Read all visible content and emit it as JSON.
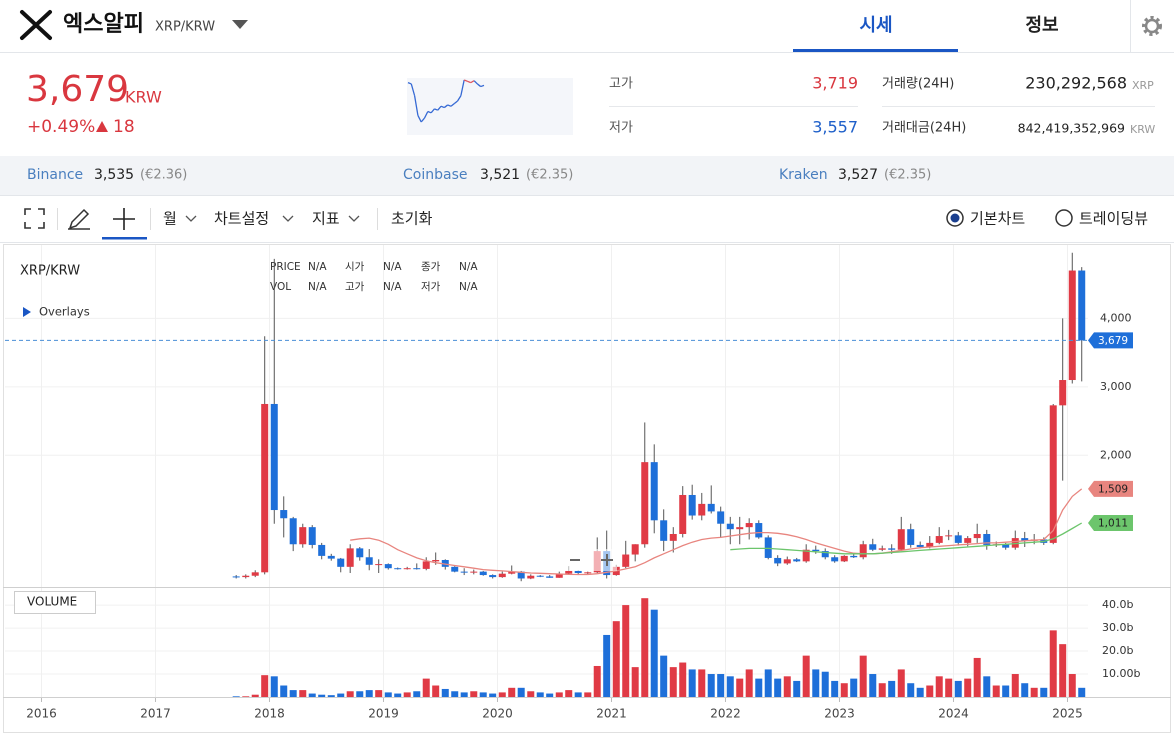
{
  "header": {
    "name": "엑스알피",
    "symbol": "XRP/KRW",
    "tabs": [
      "시세",
      "정보"
    ]
  },
  "price": {
    "value": "3,679",
    "unit": "KRW",
    "change_pct": "+0.49%",
    "change": "18"
  },
  "stats": [
    {
      "label": "고가",
      "value": "3,719"
    },
    {
      "label": "저가",
      "value": "3,557"
    },
    {
      "label": "거래량(24H)",
      "value": "230,292,568",
      "unit": "XRP"
    },
    {
      "label": "거래대금(24H)",
      "value": "842,419,352,969",
      "unit": "KRW"
    }
  ],
  "sparkline": {
    "values": [
      3700,
      3690,
      3600,
      3450,
      3400,
      3430,
      3480,
      3470,
      3500,
      3490,
      3520,
      3510,
      3530,
      3520,
      3540,
      3560,
      3600,
      3720,
      3710,
      3700,
      3715,
      3690,
      3670,
      3679
    ],
    "up_color": "#e0525a",
    "down_color": "#3569d4"
  },
  "exchanges": [
    {
      "name": "Binance",
      "price": "3,535",
      "eur": "(€2.36)"
    },
    {
      "name": "Coinbase",
      "price": "3,521",
      "eur": "(€2.35)"
    },
    {
      "name": "Kraken",
      "price": "3,527",
      "eur": "(€2.35)"
    }
  ],
  "toolbar": {
    "items": [
      "월",
      "차트설정",
      "지표",
      "초기화"
    ],
    "views": [
      "기본차트",
      "트레이딩뷰"
    ],
    "selected_view": 0
  },
  "chart_data": {
    "type": "candlestick",
    "title": "XRP/KRW",
    "overlays_label": "Overlays",
    "info_labels": [
      [
        "PRICE",
        "N/A",
        "시가",
        "N/A",
        "종가",
        "N/A"
      ],
      [
        "VOL",
        "N/A",
        "고가",
        "N/A",
        "저가",
        "N/A"
      ]
    ],
    "x": [
      2017.708,
      2017.792,
      2017.875,
      2017.958,
      2018.042,
      2018.125,
      2018.208,
      2018.292,
      2018.375,
      2018.458,
      2018.542,
      2018.625,
      2018.708,
      2018.792,
      2018.875,
      2018.958,
      2019.042,
      2019.125,
      2019.208,
      2019.292,
      2019.375,
      2019.458,
      2019.542,
      2019.625,
      2019.708,
      2019.792,
      2019.875,
      2019.958,
      2020.042,
      2020.125,
      2020.208,
      2020.292,
      2020.375,
      2020.458,
      2020.542,
      2020.625,
      2020.708,
      2020.792,
      2020.875,
      2020.958,
      2021.042,
      2021.125,
      2021.208,
      2021.292,
      2021.375,
      2021.458,
      2021.542,
      2021.625,
      2021.708,
      2021.792,
      2021.875,
      2021.958,
      2022.042,
      2022.125,
      2022.208,
      2022.292,
      2022.375,
      2022.458,
      2022.542,
      2022.625,
      2022.708,
      2022.792,
      2022.875,
      2022.958,
      2023.042,
      2023.125,
      2023.208,
      2023.292,
      2023.375,
      2023.458,
      2023.542,
      2023.625,
      2023.708,
      2023.792,
      2023.875,
      2023.958,
      2024.042,
      2024.125,
      2024.208,
      2024.292,
      2024.375,
      2024.458,
      2024.542,
      2024.625,
      2024.708,
      2024.792,
      2024.875,
      2024.958,
      2025.042,
      2025.125
    ],
    "open": [
      230,
      220,
      240,
      290,
      2750,
      1200,
      1080,
      700,
      950,
      690,
      530,
      490,
      370,
      640,
      510,
      400,
      410,
      350,
      340,
      350,
      340,
      450,
      470,
      370,
      300,
      290,
      300,
      250,
      220,
      270,
      300,
      200,
      240,
      230,
      210,
      270,
      310,
      280,
      290,
      600,
      250,
      370,
      550,
      700,
      1900,
      1050,
      750,
      850,
      1420,
      1120,
      1290,
      1180,
      1000,
      920,
      950,
      1010,
      800,
      500,
      420,
      480,
      450,
      620,
      600,
      510,
      450,
      530,
      510,
      700,
      620,
      640,
      620,
      920,
      690,
      660,
      720,
      820,
      830,
      720,
      790,
      850,
      690,
      700,
      650,
      790,
      750,
      770,
      720,
      2730,
      3100,
      4700
    ],
    "high": [
      250,
      260,
      320,
      3740,
      4870,
      1400,
      1100,
      1000,
      980,
      720,
      560,
      500,
      700,
      660,
      630,
      480,
      420,
      360,
      370,
      420,
      510,
      580,
      480,
      380,
      350,
      330,
      310,
      260,
      300,
      390,
      310,
      260,
      250,
      250,
      300,
      380,
      320,
      300,
      800,
      900,
      400,
      750,
      700,
      2480,
      2160,
      1210,
      950,
      1550,
      1570,
      1450,
      1560,
      1250,
      1100,
      1100,
      1080,
      1050,
      830,
      540,
      520,
      500,
      700,
      680,
      640,
      540,
      540,
      570,
      750,
      780,
      680,
      700,
      1100,
      1000,
      740,
      820,
      950,
      910,
      880,
      820,
      1000,
      910,
      740,
      720,
      900,
      880,
      850,
      800,
      2750,
      4000,
      4960,
      4750
    ],
    "low": [
      200,
      200,
      220,
      260,
      1000,
      800,
      600,
      650,
      640,
      480,
      460,
      290,
      280,
      460,
      320,
      280,
      330,
      330,
      330,
      330,
      320,
      400,
      330,
      290,
      250,
      260,
      240,
      200,
      210,
      260,
      160,
      190,
      220,
      210,
      210,
      260,
      250,
      260,
      280,
      200,
      240,
      350,
      450,
      650,
      860,
      600,
      580,
      800,
      1060,
      1050,
      1150,
      800,
      700,
      700,
      770,
      780,
      480,
      380,
      400,
      440,
      430,
      560,
      480,
      430,
      440,
      500,
      480,
      600,
      600,
      560,
      600,
      650,
      640,
      640,
      700,
      760,
      680,
      670,
      720,
      620,
      660,
      620,
      620,
      660,
      700,
      690,
      700,
      1630,
      3050,
      3080
    ],
    "close": [
      220,
      240,
      290,
      2750,
      1200,
      1080,
      700,
      950,
      690,
      530,
      490,
      370,
      640,
      510,
      400,
      410,
      350,
      340,
      350,
      340,
      450,
      470,
      370,
      300,
      290,
      300,
      250,
      220,
      270,
      300,
      200,
      240,
      230,
      210,
      270,
      310,
      280,
      290,
      600,
      250,
      370,
      550,
      700,
      1900,
      1050,
      750,
      850,
      1420,
      1120,
      1290,
      1180,
      1000,
      920,
      950,
      1010,
      800,
      500,
      420,
      480,
      450,
      620,
      600,
      510,
      450,
      530,
      510,
      700,
      620,
      640,
      620,
      920,
      690,
      660,
      720,
      820,
      830,
      720,
      790,
      850,
      690,
      700,
      650,
      790,
      750,
      770,
      720,
      2730,
      3100,
      4700,
      3679
    ],
    "volume": [
      0.3,
      0.3,
      1,
      9.5,
      9,
      5,
      3,
      3,
      1.5,
      1,
      0.8,
      1.5,
      2.5,
      2.5,
      3,
      3,
      2,
      1.5,
      2,
      2.5,
      8,
      5,
      3.5,
      2.5,
      2,
      2.5,
      2,
      1.5,
      2,
      4,
      4,
      2.5,
      2,
      1.5,
      2,
      3,
      2,
      2,
      13.5,
      27,
      33,
      40,
      13,
      43,
      38,
      18,
      13,
      15,
      12,
      12,
      10,
      10,
      9,
      8,
      12,
      8,
      12,
      8,
      9,
      7,
      18,
      12,
      11,
      7,
      6,
      8,
      18,
      10,
      6,
      7,
      12,
      6,
      4,
      5,
      9,
      8,
      7,
      8,
      17,
      9,
      5,
      5,
      10,
      6,
      4,
      4,
      29,
      23,
      10,
      4
    ],
    "ma": [
      {
        "color": "#e8857f",
        "values": [
          null,
          null,
          null,
          null,
          null,
          null,
          null,
          null,
          null,
          null,
          null,
          null,
          760,
          780,
          790,
          760,
          700,
          620,
          560,
          500,
          460,
          430,
          410,
          390,
          370,
          350,
          330,
          320,
          310,
          300,
          290,
          280,
          275,
          270,
          265,
          260,
          258,
          258,
          270,
          290,
          310,
          340,
          370,
          430,
          500,
          560,
          620,
          680,
          730,
          770,
          790,
          800,
          820,
          840,
          860,
          870,
          870,
          860,
          840,
          810,
          770,
          720,
          680,
          640,
          600,
          570,
          560,
          560,
          570,
          590,
          610,
          630,
          650,
          660,
          670,
          680,
          690,
          700,
          710,
          720,
          720,
          730,
          740,
          750,
          760,
          770,
          900,
          1200,
          1400,
          1509
        ]
      },
      {
        "color": "#6cc56c",
        "values": [
          null,
          null,
          null,
          null,
          null,
          null,
          null,
          null,
          null,
          null,
          null,
          null,
          null,
          null,
          null,
          null,
          null,
          null,
          null,
          null,
          null,
          null,
          null,
          null,
          null,
          null,
          null,
          null,
          null,
          null,
          null,
          null,
          null,
          null,
          null,
          null,
          null,
          null,
          null,
          null,
          null,
          null,
          null,
          null,
          null,
          null,
          null,
          null,
          null,
          null,
          null,
          null,
          620,
          630,
          640,
          640,
          640,
          630,
          620,
          610,
          600,
          590,
          580,
          570,
          560,
          560,
          560,
          560,
          570,
          580,
          590,
          600,
          610,
          620,
          630,
          640,
          650,
          660,
          670,
          680,
          690,
          700,
          710,
          720,
          730,
          740,
          780,
          850,
          930,
          1011
        ]
      }
    ],
    "price_tags": [
      {
        "value": 3679,
        "label": "3,679",
        "color": "#1e6fd9",
        "text_color": "#ffffff"
      },
      {
        "value": 1509,
        "label": "1,509",
        "color": "#e8857f",
        "text_color": "#222222"
      },
      {
        "value": 1011,
        "label": "1,011",
        "color": "#6cc56c",
        "text_color": "#222222"
      }
    ],
    "current_line_color": "#4a8fd6",
    "up_color": "#e03a45",
    "down_color": "#1e6fd9",
    "xlim": [
      2015.68,
      2025.18
    ],
    "xticks": [
      2016,
      2017,
      2018,
      2019,
      2020,
      2021,
      2022,
      2023,
      2024,
      2025
    ],
    "ylim": [
      90,
      5000
    ],
    "yticks": [
      {
        "value": 2000,
        "label": "2,000"
      },
      {
        "value": 3000,
        "label": "3,000"
      },
      {
        "value": 4000,
        "label": "4,000"
      }
    ],
    "volume_label": "VOLUME",
    "volume_ylim": [
      0,
      47
    ],
    "volume_ticks": [
      {
        "value": 10,
        "label": "10.00b"
      },
      {
        "value": 20,
        "label": "20.0b"
      },
      {
        "value": 30,
        "label": "30.0b"
      },
      {
        "value": 40,
        "label": "40.0b"
      }
    ],
    "grid": true
  }
}
